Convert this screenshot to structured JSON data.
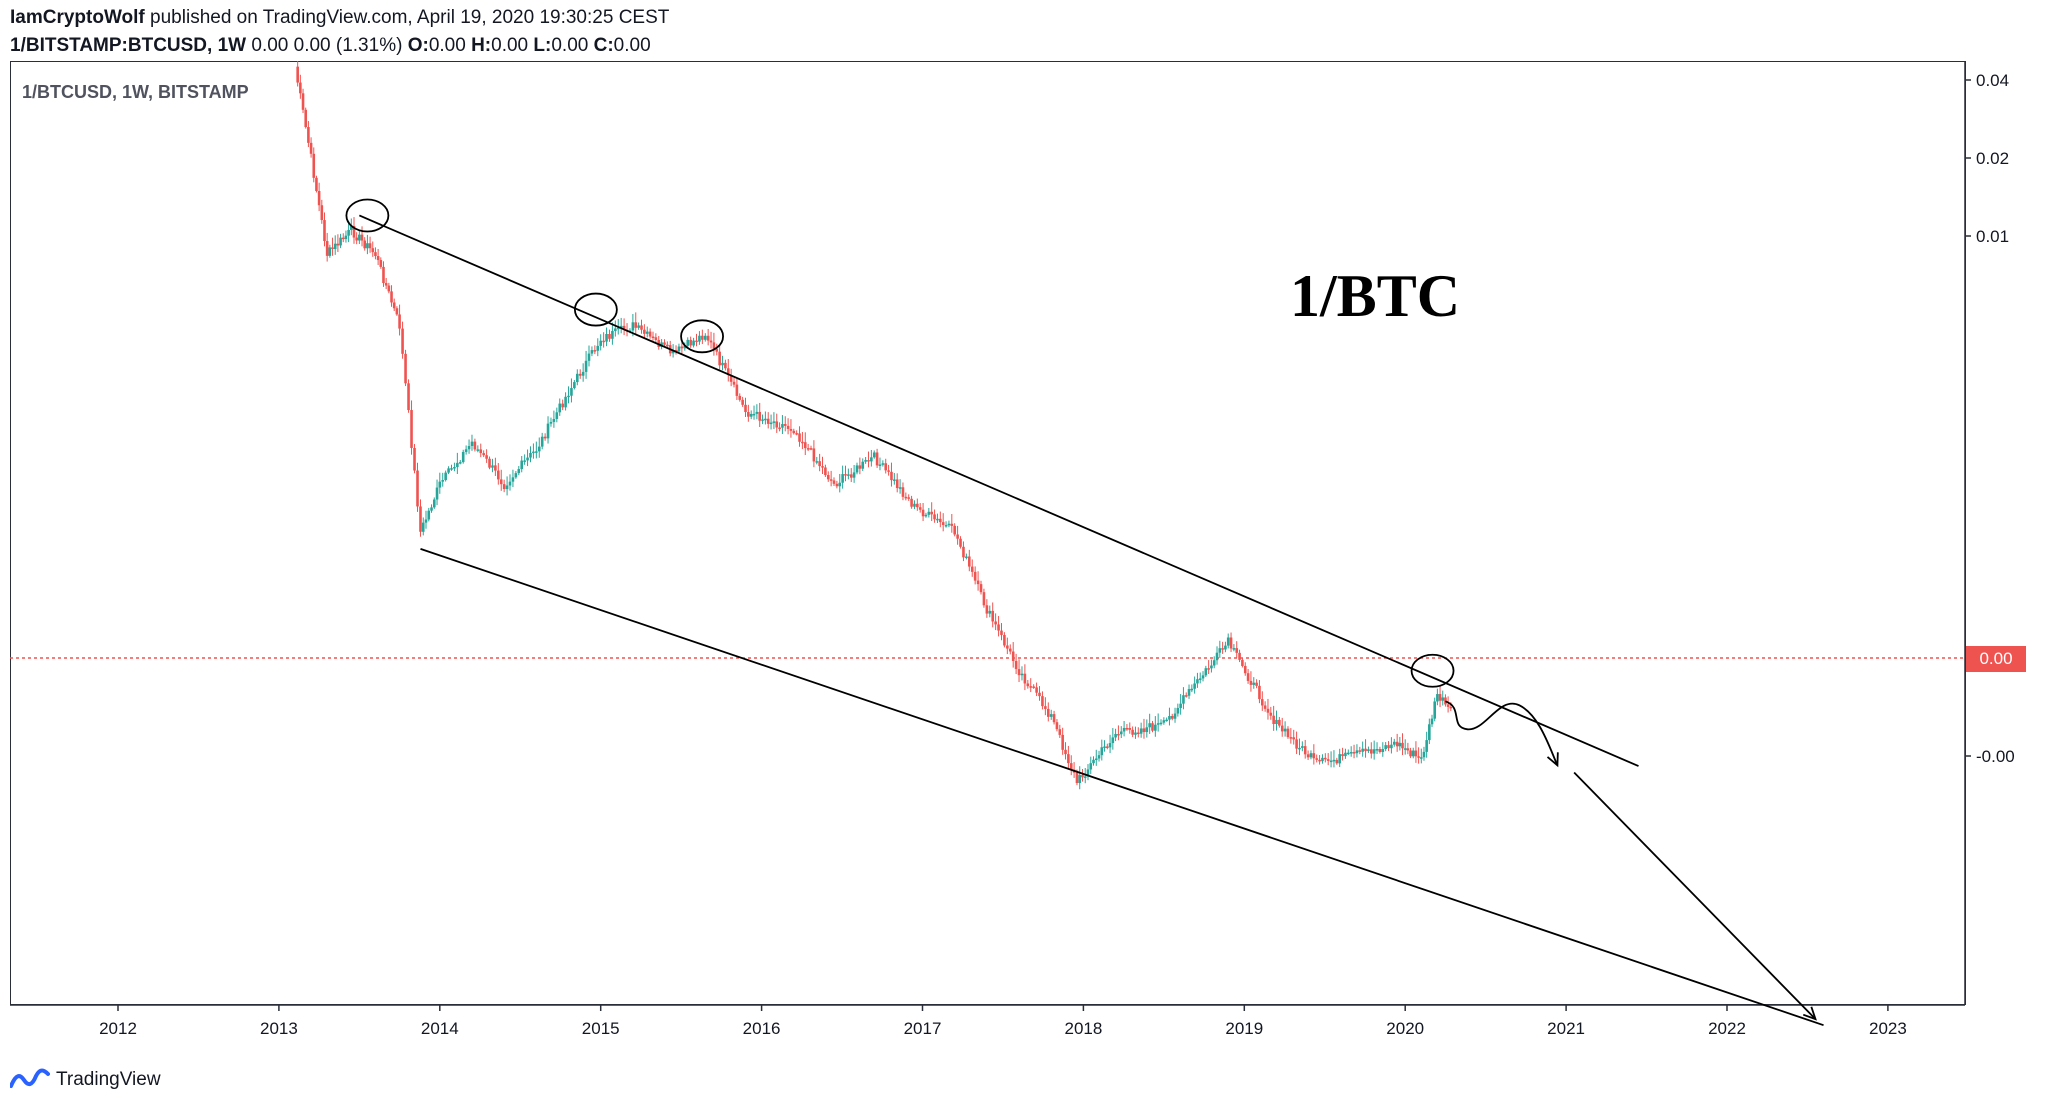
{
  "header": {
    "line1_author": "IamCryptoWolf",
    "line1_rest": " published on TradingView.com, April 19, 2020 19:30:25 CEST",
    "line2_symbol": "1/BITSTAMP:BTCUSD, 1W",
    "line2_change": " 0.00 0.00 (1.31%) ",
    "line2_o": "O:",
    "line2_o_val": "0.00 ",
    "line2_h": "H:",
    "line2_h_val": "0.00 ",
    "line2_l": "L:",
    "line2_l_val": "0.00 ",
    "line2_c": "C:",
    "line2_c_val": "0.00"
  },
  "symbol_label": "1/BTCUSD, 1W, BITSTAMP",
  "annotation_text": "1/BTC",
  "current_price_label": "0.00",
  "footer": {
    "brand": "TradingView",
    "logo_icon": "tradingview-logo-icon"
  },
  "colors": {
    "up": "#26a69a",
    "down": "#ef5350",
    "axis": "#2a2e39",
    "price_line": "#ef5350"
  },
  "chart_data": {
    "type": "candlestick-line",
    "title": "1/BTCUSD, 1W, BITSTAMP",
    "x_ticks": [
      "2012",
      "2013",
      "2014",
      "2015",
      "2016",
      "2017",
      "2018",
      "2019",
      "2020",
      "2021",
      "2022",
      "2023"
    ],
    "y_ticks": [
      "0.04",
      "0.02",
      "0.01",
      "0.00",
      "-0.00"
    ],
    "y_scale": "log",
    "current_price": "0.00",
    "x": [
      2013.1,
      2013.2,
      2013.3,
      2013.45,
      2013.6,
      2013.75,
      2013.88,
      2014.0,
      2014.2,
      2014.4,
      2014.6,
      2014.8,
      2015.0,
      2015.2,
      2015.45,
      2015.65,
      2015.9,
      2016.2,
      2016.45,
      2016.7,
      2016.95,
      2017.2,
      2017.4,
      2017.6,
      2017.8,
      2017.96,
      2018.2,
      2018.5,
      2018.9,
      2019.2,
      2019.45,
      2019.7,
      2019.95,
      2020.1,
      2020.2,
      2020.3
    ],
    "values": [
      0.045,
      0.02,
      0.0085,
      0.0105,
      0.0085,
      0.0045,
      0.00072,
      0.0011,
      0.0016,
      0.0011,
      0.0015,
      0.0025,
      0.004,
      0.0045,
      0.0035,
      0.0042,
      0.0021,
      0.0018,
      0.0011,
      0.0014,
      0.0009,
      0.00072,
      0.00036,
      0.00021,
      0.00014,
      7.8e-05,
      0.00012,
      0.00013,
      0.00027,
      0.00013,
      9.2e-05,
      0.0001,
      0.00011,
      9.5e-05,
      0.00017,
      0.00014
    ],
    "annotations": {
      "upper_trendline": [
        [
          2013.5,
          0.012
        ],
        [
          2021.45,
          9e-05
        ]
      ],
      "lower_trendline": [
        [
          2013.88,
          0.00062
        ],
        [
          2022.6,
          9e-06
        ]
      ],
      "projection_arrow": [
        [
          2021.05,
          8.5e-05
        ],
        [
          2022.55,
          9.5e-06
        ]
      ]
    }
  }
}
